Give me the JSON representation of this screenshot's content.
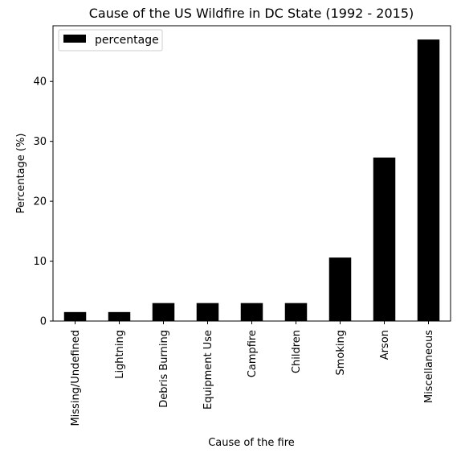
{
  "chart_data": {
    "type": "bar",
    "title": "Cause of the US Wildfire in DC State (1992 - 2015)",
    "xlabel": "Cause of the fire",
    "ylabel": "Percentage (%)",
    "categories": [
      "Missing/Undefined",
      "Lightning",
      "Debris Burning",
      "Equipment Use",
      "Campfire",
      "Children",
      "Smoking",
      "Arson",
      "Miscellaneous"
    ],
    "series": [
      {
        "name": "percentage",
        "values": [
          1.5,
          1.5,
          3.0,
          3.0,
          3.0,
          3.0,
          10.6,
          27.3,
          47.0
        ]
      }
    ],
    "ylim": [
      0,
      49.3
    ],
    "yticks": [
      0,
      10,
      20,
      30,
      40
    ],
    "grid": false,
    "legend_position": "top-left",
    "bar_color": "#000000"
  }
}
